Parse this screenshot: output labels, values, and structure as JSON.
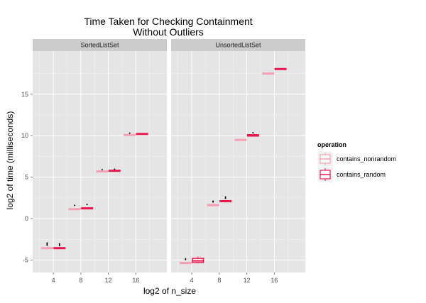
{
  "chart_data": {
    "type": "box",
    "title_lines": [
      "Time Taken for Checking Containment",
      "Without Outliers"
    ],
    "xlabel": "log2 of n_size",
    "ylabel": "log2 of time (milliseconds)",
    "x_ticks": [
      4,
      8,
      12,
      16
    ],
    "y_ticks": [
      -5,
      0,
      5,
      10,
      15
    ],
    "xlim": [
      1,
      20.5
    ],
    "ylim": [
      -6.5,
      20.2
    ],
    "grid": true,
    "legend": {
      "title": "operation",
      "placement": "right",
      "entries": [
        {
          "label": "contains_nonrandom",
          "color": "#F4A0B5"
        },
        {
          "label": "contains_random",
          "color": "#E8194F"
        }
      ]
    },
    "facets": [
      {
        "name": "SortedListSet",
        "groups": [
          {
            "x": 4,
            "series": "contains_nonrandom",
            "median": -3.55,
            "q1": -3.6,
            "q3": -3.5,
            "whisker_low": -3.62,
            "whisker_high": -3.42,
            "outliers": [
              -2.95,
              -3.08,
              -3.2
            ]
          },
          {
            "x": 4,
            "series": "contains_random",
            "median": -3.55,
            "q1": -3.6,
            "q3": -3.5,
            "whisker_low": -3.62,
            "whisker_high": -3.42,
            "outliers": [
              -3.05,
              -3.15,
              -3.25
            ]
          },
          {
            "x": 8,
            "series": "contains_nonrandom",
            "median": 1.15,
            "q1": 1.1,
            "q3": 1.2,
            "whisker_low": 1.05,
            "whisker_high": 1.28,
            "outliers": [
              1.6
            ]
          },
          {
            "x": 8,
            "series": "contains_random",
            "median": 1.25,
            "q1": 1.2,
            "q3": 1.3,
            "whisker_low": 1.15,
            "whisker_high": 1.35,
            "outliers": [
              1.7
            ]
          },
          {
            "x": 12,
            "series": "contains_nonrandom",
            "median": 5.7,
            "q1": 5.65,
            "q3": 5.75,
            "whisker_low": 5.62,
            "whisker_high": 5.78,
            "outliers": [
              5.9
            ]
          },
          {
            "x": 12,
            "series": "contains_random",
            "median": 5.78,
            "q1": 5.73,
            "q3": 5.83,
            "whisker_low": 5.7,
            "whisker_high": 5.86,
            "outliers": [
              5.95
            ]
          },
          {
            "x": 16,
            "series": "contains_nonrandom",
            "median": 10.1,
            "q1": 10.05,
            "q3": 10.15,
            "whisker_low": 10.02,
            "whisker_high": 10.18,
            "outliers": [
              10.3
            ]
          },
          {
            "x": 16,
            "series": "contains_random",
            "median": 10.22,
            "q1": 10.17,
            "q3": 10.27,
            "whisker_low": 10.13,
            "whisker_high": 10.3,
            "outliers": []
          }
        ]
      },
      {
        "name": "UnsortedListSet",
        "groups": [
          {
            "x": 4,
            "series": "contains_nonrandom",
            "median": -5.35,
            "q1": -5.42,
            "q3": -5.28,
            "whisker_low": -5.5,
            "whisker_high": -5.2,
            "outliers": [
              -4.85,
              -4.95
            ]
          },
          {
            "x": 4,
            "series": "contains_random",
            "median": -5.1,
            "q1": -5.3,
            "q3": -4.8,
            "whisker_low": -5.4,
            "whisker_high": -4.6,
            "outliers": []
          },
          {
            "x": 8,
            "series": "contains_nonrandom",
            "median": 1.6,
            "q1": 1.55,
            "q3": 1.7,
            "whisker_low": 1.5,
            "whisker_high": 1.8,
            "outliers": [
              2.0,
              2.1
            ]
          },
          {
            "x": 8,
            "series": "contains_random",
            "median": 2.1,
            "q1": 2.03,
            "q3": 2.17,
            "whisker_low": 2.0,
            "whisker_high": 2.22,
            "outliers": [
              2.45,
              2.6
            ]
          },
          {
            "x": 12,
            "series": "contains_nonrandom",
            "median": 9.5,
            "q1": 9.45,
            "q3": 9.55,
            "whisker_low": 9.42,
            "whisker_high": 9.58,
            "outliers": []
          },
          {
            "x": 12,
            "series": "contains_random",
            "median": 10.05,
            "q1": 9.95,
            "q3": 10.12,
            "whisker_low": 9.9,
            "whisker_high": 10.2,
            "outliers": [
              10.35
            ]
          },
          {
            "x": 16,
            "series": "contains_nonrandom",
            "median": 17.5,
            "q1": 17.45,
            "q3": 17.55,
            "whisker_low": 17.42,
            "whisker_high": 17.58,
            "outliers": []
          },
          {
            "x": 16,
            "series": "contains_random",
            "median": 18.05,
            "q1": 18.0,
            "q3": 18.1,
            "whisker_low": 17.97,
            "whisker_high": 18.13,
            "outliers": []
          }
        ]
      }
    ]
  }
}
